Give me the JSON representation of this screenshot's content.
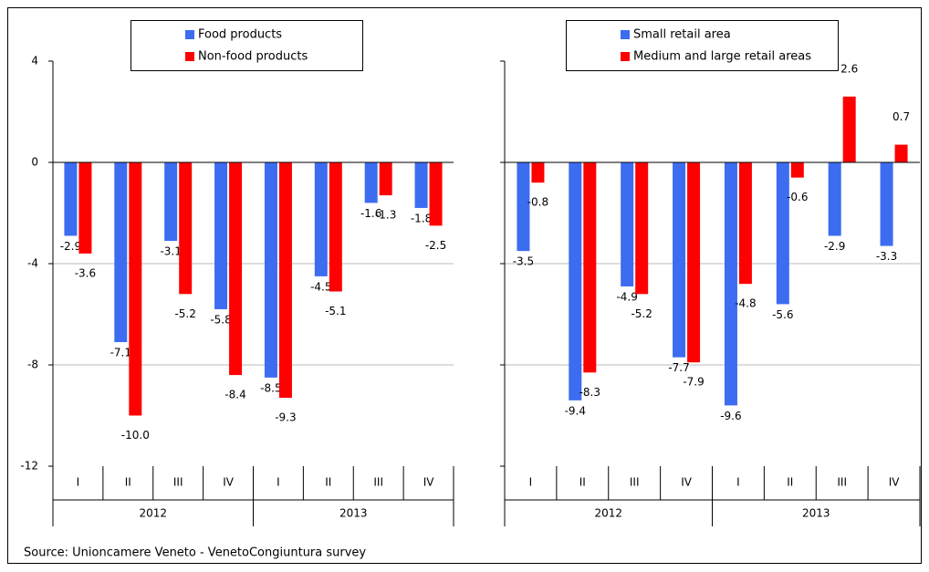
{
  "chart_data": [
    {
      "type": "bar",
      "groups": [
        {
          "name": "2012",
          "categories": [
            "I",
            "II",
            "III",
            "IV"
          ]
        },
        {
          "name": "2013",
          "categories": [
            "I",
            "II",
            "III",
            "IV"
          ]
        }
      ],
      "series": [
        {
          "name": "Food products",
          "color": "#3c6cf0",
          "values": [
            -2.9,
            -7.1,
            -3.1,
            -5.8,
            -8.5,
            -4.5,
            -1.6,
            -1.8
          ]
        },
        {
          "name": "Non-food products",
          "color": "#ff0000",
          "values": [
            -3.6,
            -10,
            -5.2,
            -8.4,
            -9.3,
            -5.1,
            -1.3,
            -2.5
          ],
          "value_labels": [
            "-3.6",
            "-10.0",
            "-5.2",
            "-8.4",
            "-9.3",
            "-5.1",
            "-1.3",
            "-2.5"
          ]
        }
      ],
      "ylim": [
        -12,
        4
      ],
      "yticks": [
        -12,
        -8,
        -4,
        0,
        4
      ],
      "ytick_labels": true,
      "grid": true
    },
    {
      "type": "bar",
      "groups": [
        {
          "name": "2012",
          "categories": [
            "I",
            "II",
            "III",
            "IV"
          ]
        },
        {
          "name": "2013",
          "categories": [
            "I",
            "II",
            "III",
            "IV"
          ]
        }
      ],
      "series": [
        {
          "name": "Small retail area",
          "color": "#3c6cf0",
          "values": [
            -3.5,
            -9.4,
            -4.9,
            -7.7,
            -9.6,
            -5.6,
            -2.9,
            -3.3
          ]
        },
        {
          "name": "Medium and large retail areas",
          "color": "#ff0000",
          "values": [
            -0.8,
            -8.3,
            -5.2,
            -7.9,
            -4.8,
            -0.6,
            2.6,
            0.7
          ]
        }
      ],
      "ylim": [
        -12,
        4
      ],
      "yticks": [
        -12,
        -8,
        -4,
        0,
        4
      ],
      "ytick_labels": false,
      "grid": true
    }
  ],
  "source": "Source: Unioncamere Veneto - VenetoCongiuntura survey"
}
